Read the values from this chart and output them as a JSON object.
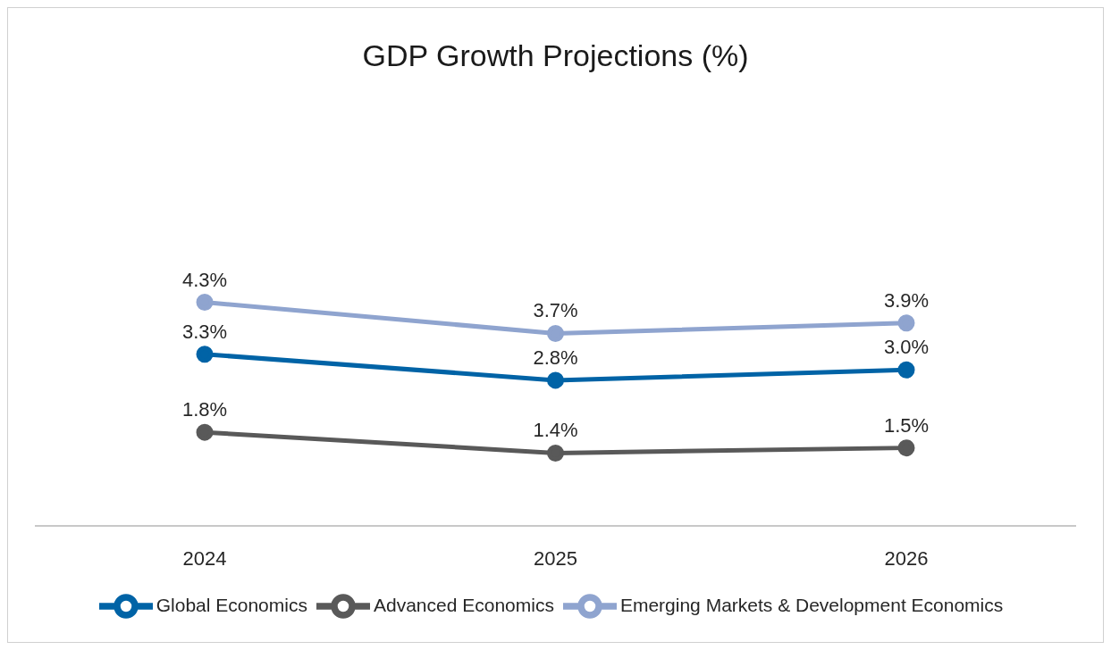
{
  "chart_data": {
    "type": "line",
    "title": "GDP Growth Projections (%)",
    "categories": [
      "2024",
      "2025",
      "2026"
    ],
    "series": [
      {
        "name": "Global Economics",
        "color": "#0063a6",
        "values": [
          3.3,
          2.8,
          3.0
        ],
        "value_labels": [
          "3.3%",
          "2.8%",
          "3.0%"
        ]
      },
      {
        "name": "Advanced Economics",
        "color": "#595959",
        "values": [
          1.8,
          1.4,
          1.5
        ],
        "value_labels": [
          "1.8%",
          "1.4%",
          "1.5%"
        ]
      },
      {
        "name": "Emerging Markets & Development Economics",
        "color": "#8fa4cf",
        "values": [
          4.3,
          3.7,
          3.9
        ],
        "value_labels": [
          "4.3%",
          "3.7%",
          "3.9%"
        ]
      }
    ],
    "grid": false,
    "legend": "bottom",
    "marker": "circle",
    "line_style": "solid"
  }
}
